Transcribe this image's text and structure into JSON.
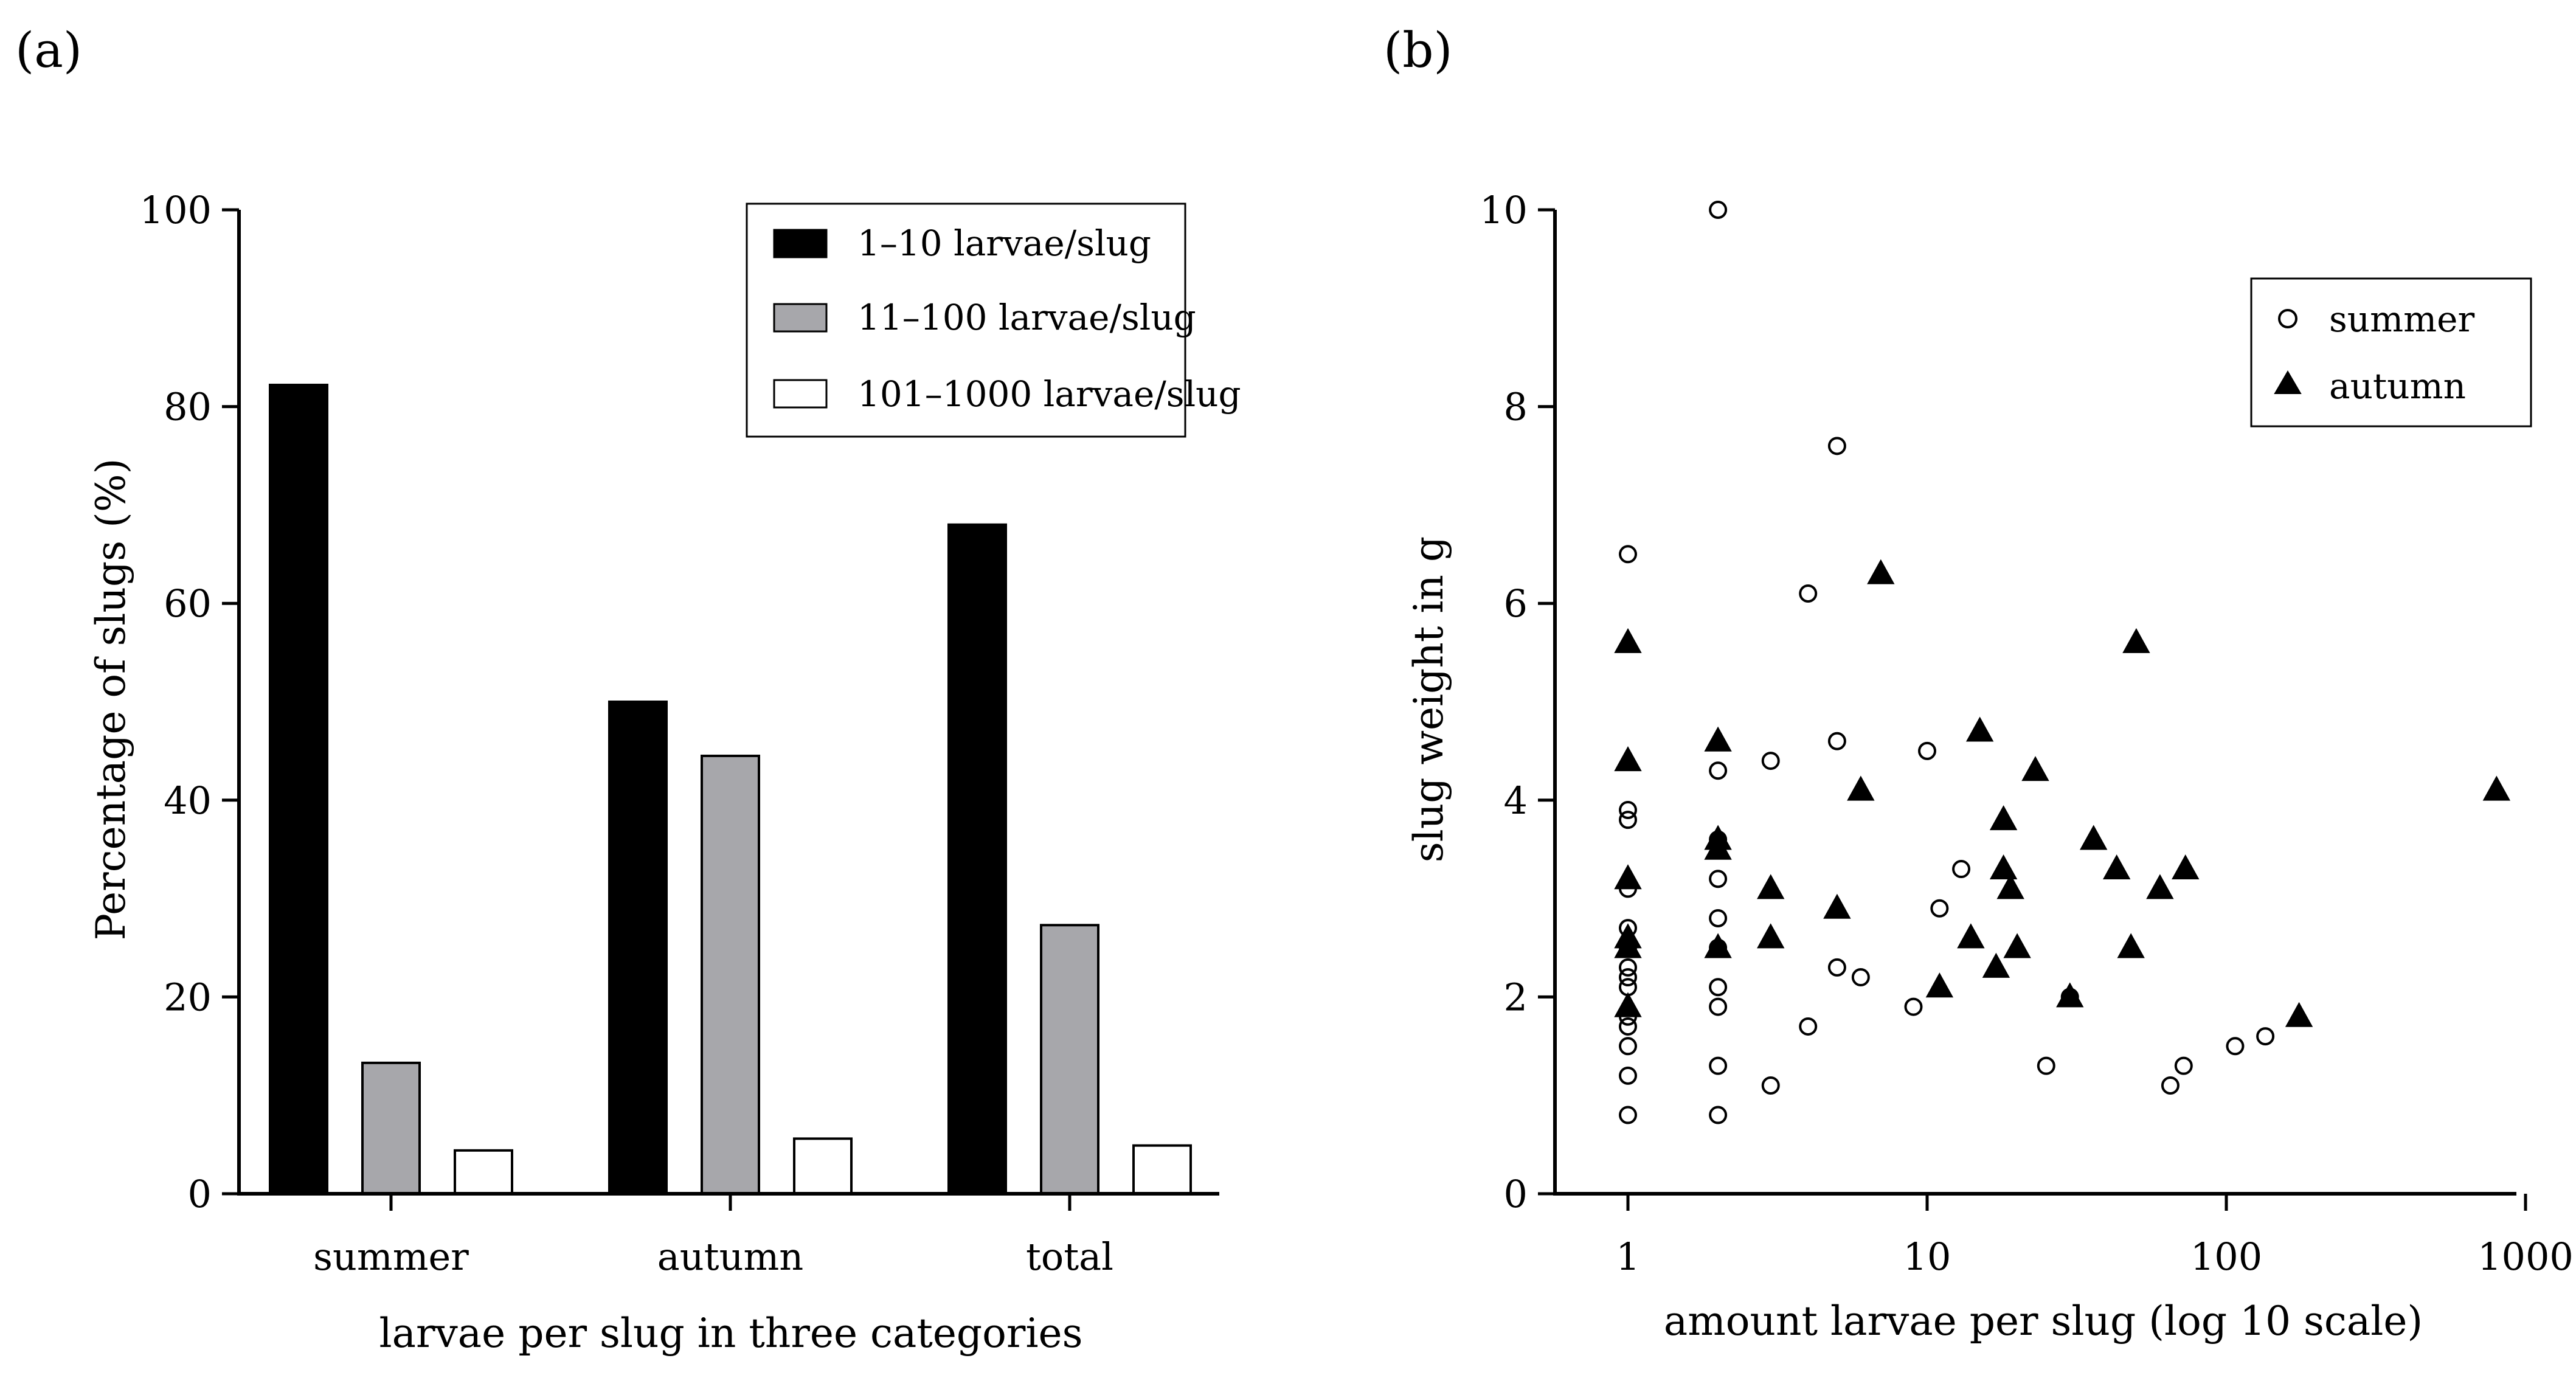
{
  "panel_labels": {
    "a": "(a)",
    "b": "(b)"
  },
  "colors": {
    "bar_1_10": "#000000",
    "bar_11_100": "#a7a7ab",
    "bar_101_1000": "#ffffff",
    "stroke": "#000000"
  },
  "chart_data": [
    {
      "type": "bar",
      "categories": [
        "summer",
        "autumn",
        "total"
      ],
      "series": [
        {
          "name": "1–10 larvae/slug",
          "values": [
            82.2,
            50.0,
            68.0
          ]
        },
        {
          "name": "11–100 larvae/slug",
          "values": [
            13.3,
            44.5,
            27.3
          ]
        },
        {
          "name": "101–1000 larvae/slug",
          "values": [
            4.4,
            5.6,
            4.9
          ]
        }
      ],
      "xlabel": "larvae per slug in three categories",
      "ylabel": "Percentage of slugs (%)",
      "ylim": [
        0,
        100
      ],
      "yticks": [
        0,
        20,
        40,
        60,
        80,
        100
      ],
      "ytick_labels": [
        "0",
        "20",
        "40",
        "60",
        "80",
        "100"
      ],
      "legend_position": "top-right"
    },
    {
      "type": "scatter",
      "xscale": "log10",
      "xlim": [
        0.5,
        1000
      ],
      "xticks": [
        1,
        10,
        100,
        1000
      ],
      "xtick_labels": [
        "1",
        "10",
        "100",
        "1000"
      ],
      "ylim": [
        0,
        10
      ],
      "yticks": [
        0,
        2,
        4,
        6,
        8,
        10
      ],
      "ytick_labels": [
        "0",
        "2",
        "4",
        "6",
        "8",
        "10"
      ],
      "xlabel": "amount larvae per slug (log 10 scale)",
      "ylabel": "slug weight in g",
      "legend_position": "top-right",
      "series": [
        {
          "name": "summer",
          "marker": "open-circle",
          "points": [
            [
              1,
              6.5
            ],
            [
              1,
              3.9
            ],
            [
              1,
              3.8
            ],
            [
              1,
              3.1
            ],
            [
              1,
              2.7
            ],
            [
              1,
              2.5
            ],
            [
              1,
              2.3
            ],
            [
              1,
              2.2
            ],
            [
              1,
              2.1
            ],
            [
              1,
              1.8
            ],
            [
              1,
              1.7
            ],
            [
              1,
              1.5
            ],
            [
              1,
              1.2
            ],
            [
              1,
              0.8
            ],
            [
              2,
              10.0
            ],
            [
              2,
              4.3
            ],
            [
              2,
              3.6
            ],
            [
              2,
              3.2
            ],
            [
              2,
              2.8
            ],
            [
              2,
              2.5
            ],
            [
              2,
              2.1
            ],
            [
              2,
              1.9
            ],
            [
              2,
              1.3
            ],
            [
              2,
              0.8
            ],
            [
              3,
              4.4
            ],
            [
              3,
              1.1
            ],
            [
              4,
              6.1
            ],
            [
              4,
              1.7
            ],
            [
              5,
              7.6
            ],
            [
              5,
              4.6
            ],
            [
              5,
              2.3
            ],
            [
              6,
              2.2
            ],
            [
              9,
              1.9
            ],
            [
              10,
              4.5
            ],
            [
              11,
              2.9
            ],
            [
              13,
              3.3
            ],
            [
              25,
              1.3
            ],
            [
              30,
              2.0
            ],
            [
              65,
              1.1
            ],
            [
              72,
              1.3
            ],
            [
              107,
              1.5
            ],
            [
              135,
              1.6
            ]
          ]
        },
        {
          "name": "autumn",
          "marker": "filled-triangle",
          "points": [
            [
              1,
              5.6
            ],
            [
              1,
              4.4
            ],
            [
              1,
              3.2
            ],
            [
              1,
              2.6
            ],
            [
              1,
              2.5
            ],
            [
              1,
              1.9
            ],
            [
              2,
              4.6
            ],
            [
              2,
              3.6
            ],
            [
              2,
              3.5
            ],
            [
              2,
              2.5
            ],
            [
              3,
              3.1
            ],
            [
              3,
              2.6
            ],
            [
              5,
              2.9
            ],
            [
              6,
              4.1
            ],
            [
              7,
              6.3
            ],
            [
              11,
              2.1
            ],
            [
              14,
              2.6
            ],
            [
              15,
              4.7
            ],
            [
              17,
              2.3
            ],
            [
              18,
              3.8
            ],
            [
              18,
              3.3
            ],
            [
              19,
              3.1
            ],
            [
              20,
              2.5
            ],
            [
              23,
              4.3
            ],
            [
              30,
              2.0
            ],
            [
              36,
              3.6
            ],
            [
              43,
              3.3
            ],
            [
              48,
              2.5
            ],
            [
              50,
              5.6
            ],
            [
              60,
              3.1
            ],
            [
              73,
              3.3
            ],
            [
              175,
              1.8
            ],
            [
              800,
              4.1
            ]
          ]
        }
      ]
    }
  ]
}
